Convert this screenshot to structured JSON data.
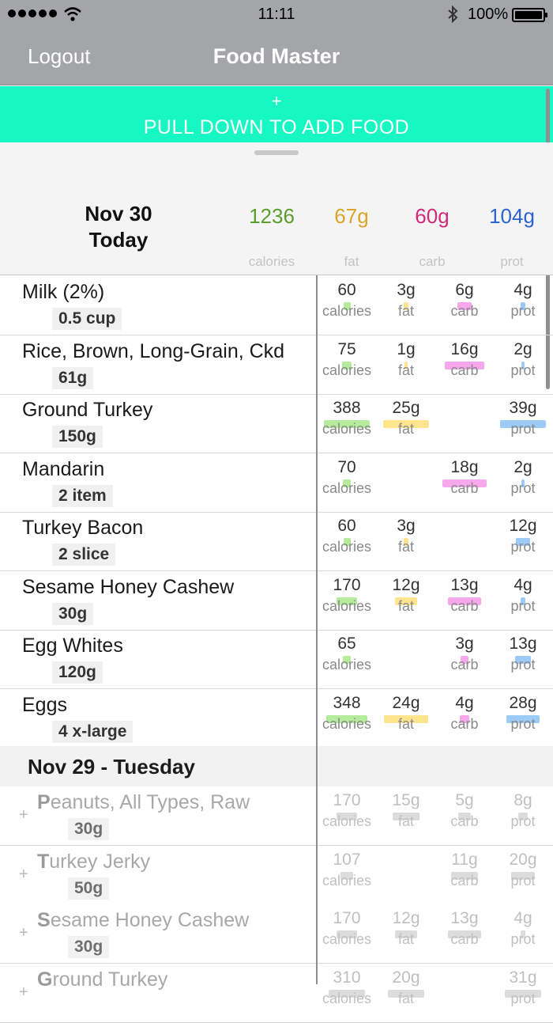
{
  "status": {
    "time": "11:11",
    "battery": "100%"
  },
  "nav": {
    "logout": "Logout",
    "title": "Food Master"
  },
  "banner": {
    "plus": "+",
    "text": "PULL DOWN TO ADD FOOD"
  },
  "summary": {
    "date": "Nov 30",
    "day": "Today",
    "calories": "1236",
    "fat": "67g",
    "carb": "60g",
    "prot": "104g",
    "labels": {
      "calories": "calories",
      "fat": "fat",
      "carb": "carb",
      "prot": "prot"
    }
  },
  "colors": {
    "calories": "#5a9e2f",
    "fat": "#d9a42a",
    "carb": "#d12a79",
    "prot": "#2c63d3",
    "banner": "#17f7c3"
  },
  "labels": {
    "calories": "calories",
    "fat": "fat",
    "carb": "carb",
    "prot": "prot"
  },
  "today_foods": [
    {
      "name": "Milk (2%)",
      "amount": "0.5 cup",
      "calories": "60",
      "fat": "3g",
      "carb": "6g",
      "prot": "4g"
    },
    {
      "name": "Rice, Brown, Long-Grain, Ckd",
      "amount": "61g",
      "calories": "75",
      "fat": "1g",
      "carb": "16g",
      "prot": "2g"
    },
    {
      "name": "Ground Turkey",
      "amount": "150g",
      "calories": "388",
      "fat": "25g",
      "carb": "",
      "prot": "39g"
    },
    {
      "name": "Mandarin",
      "amount": "2 item",
      "calories": "70",
      "fat": "",
      "carb": "18g",
      "prot": "2g"
    },
    {
      "name": "Turkey Bacon",
      "amount": "2 slice",
      "calories": "60",
      "fat": "3g",
      "carb": "",
      "prot": "12g"
    },
    {
      "name": "Sesame Honey Cashew",
      "amount": "30g",
      "calories": "170",
      "fat": "12g",
      "carb": "13g",
      "prot": "4g"
    },
    {
      "name": "Egg Whites",
      "amount": "120g",
      "calories": "65",
      "fat": "",
      "carb": "3g",
      "prot": "13g"
    },
    {
      "name": "Eggs",
      "amount": "4 x-large",
      "calories": "348",
      "fat": "24g",
      "carb": "4g",
      "prot": "28g"
    }
  ],
  "previous_day": {
    "header": "Nov 29 - Tuesday",
    "foods": [
      {
        "initial": "P",
        "rest": "eanuts, All Types, Raw",
        "amount": "30g",
        "calories": "170",
        "fat": "15g",
        "carb": "5g",
        "prot": "8g"
      },
      {
        "initial": "T",
        "rest": "urkey Jerky",
        "amount": "50g",
        "calories": "107",
        "fat": "",
        "carb": "11g",
        "prot": "20g"
      },
      {
        "initial": "S",
        "rest": "esame Honey Cashew",
        "amount": "30g",
        "calories": "170",
        "fat": "12g",
        "carb": "13g",
        "prot": "4g"
      },
      {
        "initial": "G",
        "rest": "round Turkey",
        "amount": "",
        "calories": "310",
        "fat": "20g",
        "carb": "",
        "prot": "31g"
      }
    ]
  }
}
